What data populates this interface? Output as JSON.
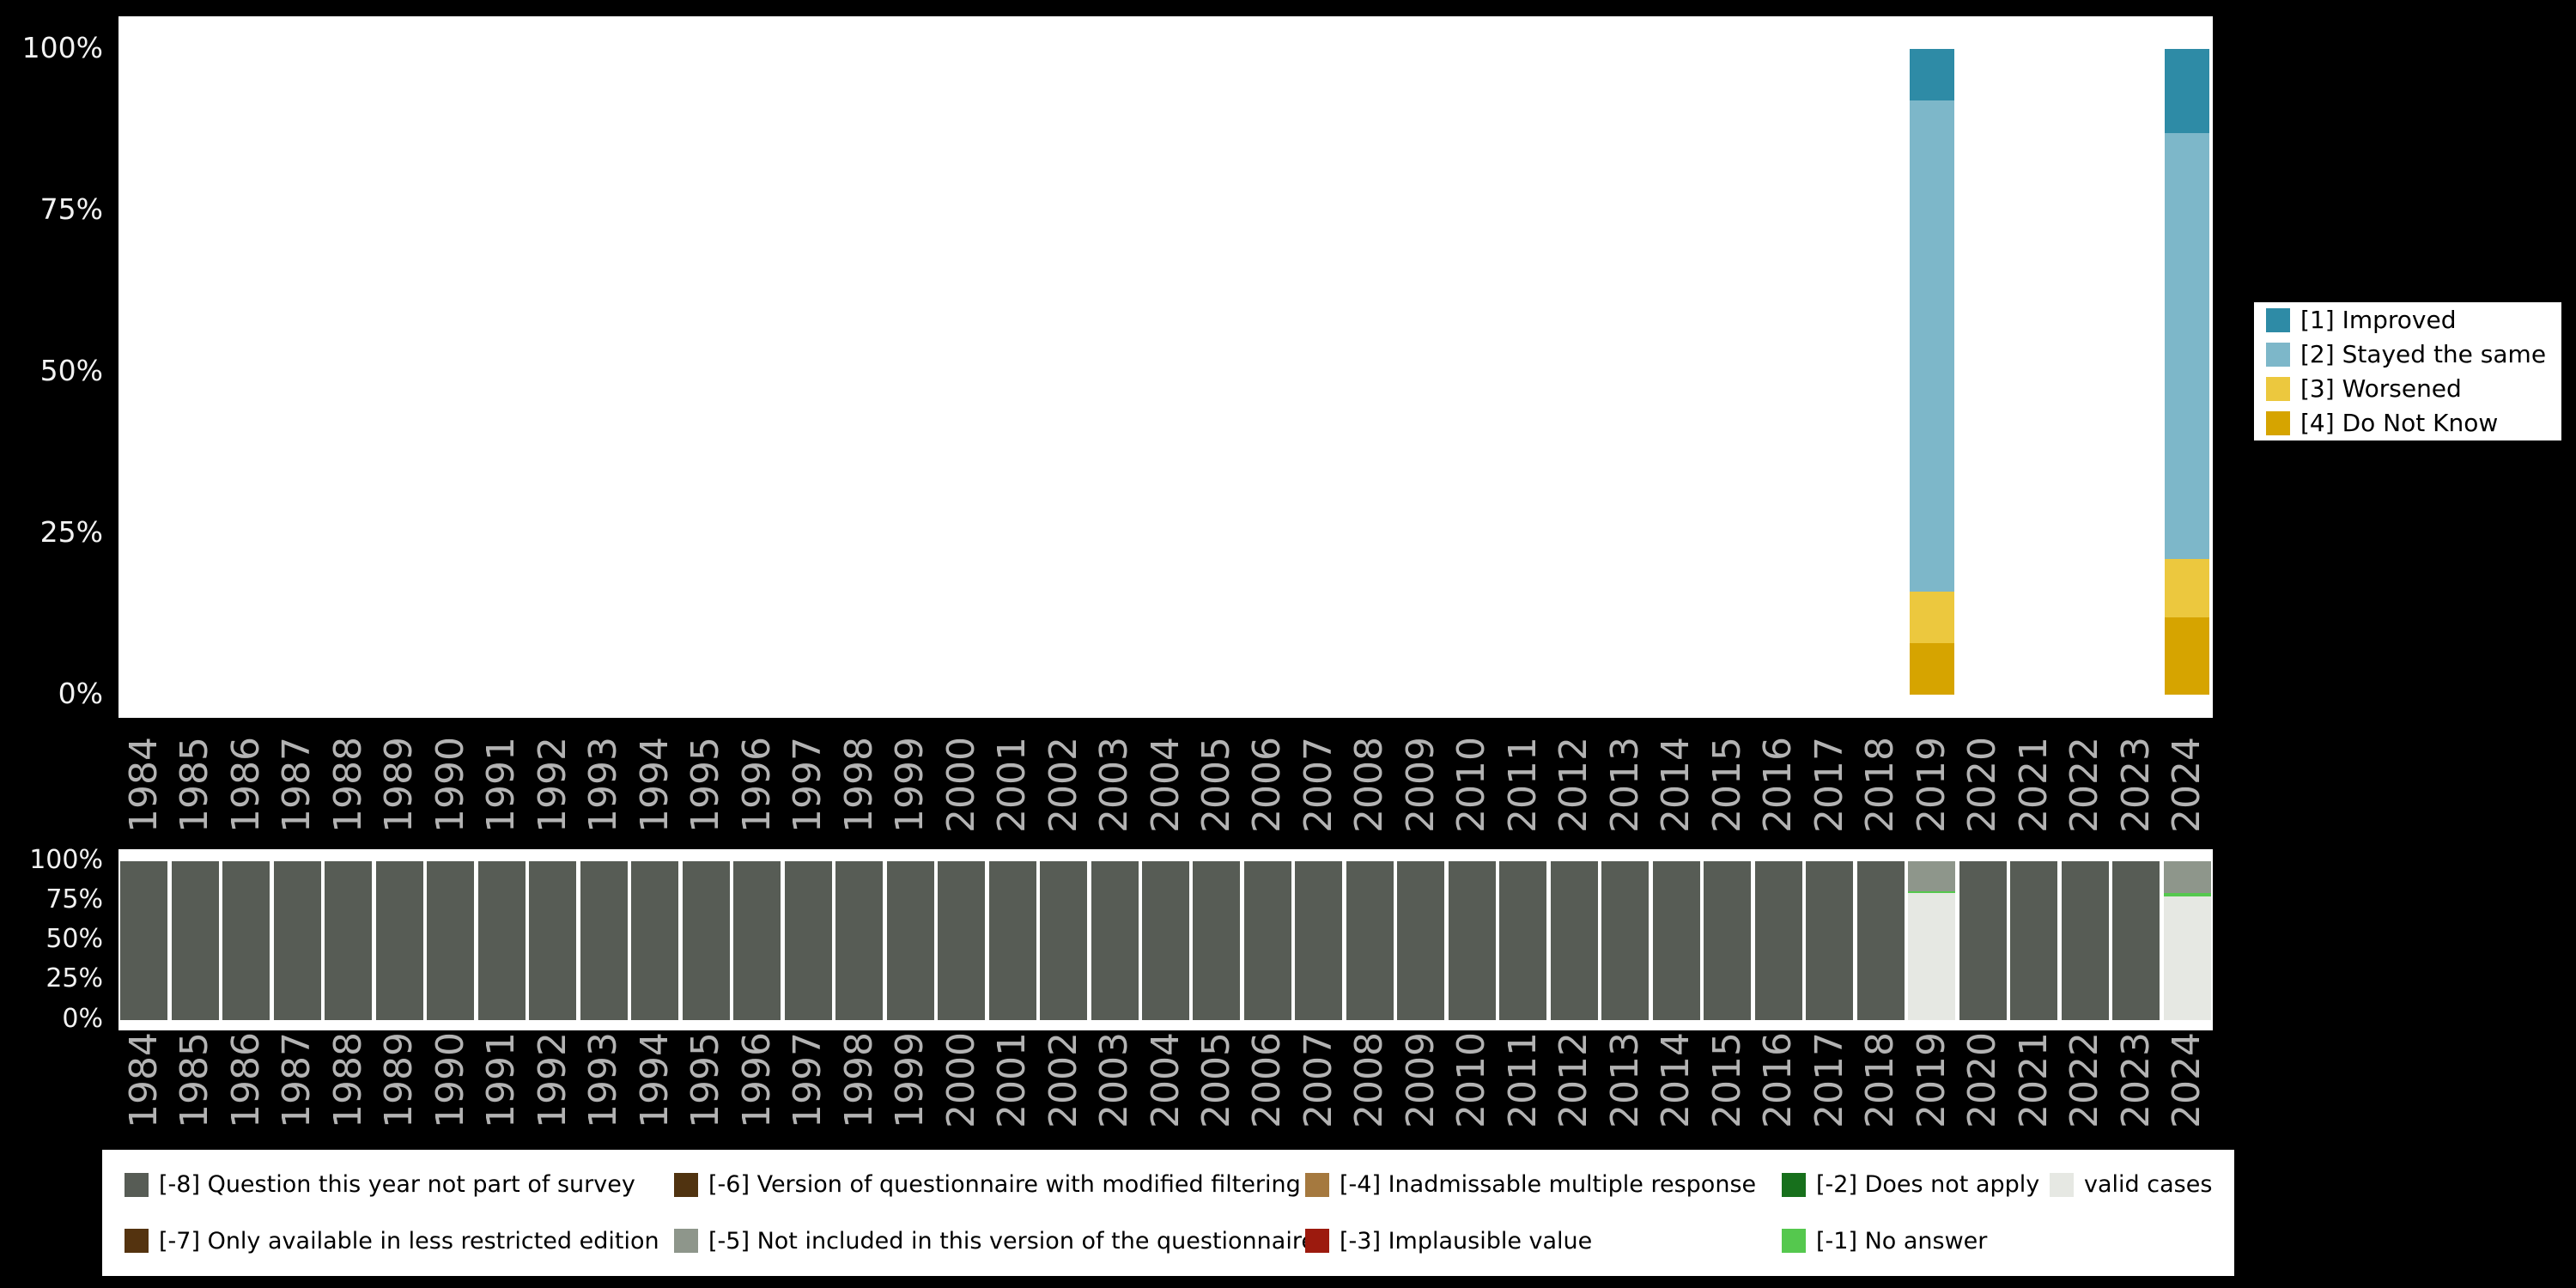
{
  "page": {
    "background": "#000000"
  },
  "chart_data": [
    {
      "id": "responses",
      "type": "bar",
      "stacked": true,
      "title": "",
      "xlabel": "",
      "ylabel": "",
      "ylim": [
        0,
        100
      ],
      "grid": false,
      "legend_position": "right",
      "x": [
        "1984",
        "1985",
        "1986",
        "1987",
        "1988",
        "1989",
        "1990",
        "1991",
        "1992",
        "1993",
        "1994",
        "1995",
        "1996",
        "1997",
        "1998",
        "1999",
        "2000",
        "2001",
        "2002",
        "2003",
        "2004",
        "2005",
        "2006",
        "2007",
        "2008",
        "2009",
        "2010",
        "2011",
        "2012",
        "2013",
        "2014",
        "2015",
        "2016",
        "2017",
        "2018",
        "2019",
        "2020",
        "2021",
        "2022",
        "2023",
        "2024"
      ],
      "yticks": [
        {
          "label": "0%",
          "value": 0
        },
        {
          "label": "25%",
          "value": 25
        },
        {
          "label": "50%",
          "value": 50
        },
        {
          "label": "75%",
          "value": 75
        },
        {
          "label": "100%",
          "value": 100
        }
      ],
      "series": [
        {
          "name": "[1] Improved",
          "color": "#2e8ba6",
          "values": {
            "2019": 8,
            "2024": 13
          }
        },
        {
          "name": "[2] Stayed the same",
          "color": "#7db7c9",
          "values": {
            "2019": 76,
            "2024": 66
          }
        },
        {
          "name": "[3] Worsened",
          "color": "#ecc83e",
          "values": {
            "2019": 8,
            "2024": 9
          }
        },
        {
          "name": "[4] Do Not Know",
          "color": "#d6a400",
          "values": {
            "2019": 8,
            "2024": 12
          }
        }
      ],
      "stack_order_bottom_to_top": [
        "[4] Do Not Know",
        "[3] Worsened",
        "[2] Stayed the same",
        "[1] Improved"
      ]
    },
    {
      "id": "missing-values",
      "type": "bar",
      "stacked": true,
      "title": "",
      "xlabel": "",
      "ylabel": "",
      "ylim": [
        0,
        100
      ],
      "grid": false,
      "legend_position": "bottom",
      "x": [
        "1984",
        "1985",
        "1986",
        "1987",
        "1988",
        "1989",
        "1990",
        "1991",
        "1992",
        "1993",
        "1994",
        "1995",
        "1996",
        "1997",
        "1998",
        "1999",
        "2000",
        "2001",
        "2002",
        "2003",
        "2004",
        "2005",
        "2006",
        "2007",
        "2008",
        "2009",
        "2010",
        "2011",
        "2012",
        "2013",
        "2014",
        "2015",
        "2016",
        "2017",
        "2018",
        "2019",
        "2020",
        "2021",
        "2022",
        "2023",
        "2024"
      ],
      "yticks": [
        {
          "label": "0%",
          "value": 0
        },
        {
          "label": "25%",
          "value": 25
        },
        {
          "label": "50%",
          "value": 50
        },
        {
          "label": "75%",
          "value": 75
        },
        {
          "label": "100%",
          "value": 100
        }
      ],
      "series": [
        {
          "name": "valid cases",
          "color": "#e6e8e3",
          "values": {
            "2019": 80,
            "2024": 78
          }
        },
        {
          "name": "[-1] No answer",
          "color": "#55c84e",
          "values": {
            "2019": 1,
            "2024": 2
          }
        },
        {
          "name": "[-5] Not included in this version of the questionnaire",
          "color": "#8e968b",
          "values": {
            "2019": 19,
            "2024": 20
          }
        },
        {
          "name": "[-8] Question this year not part of survey",
          "color": "#575c55",
          "values": {
            "1984": 100,
            "1985": 100,
            "1986": 100,
            "1987": 100,
            "1988": 100,
            "1989": 100,
            "1990": 100,
            "1991": 100,
            "1992": 100,
            "1993": 100,
            "1994": 100,
            "1995": 100,
            "1996": 100,
            "1997": 100,
            "1998": 100,
            "1999": 100,
            "2000": 100,
            "2001": 100,
            "2002": 100,
            "2003": 100,
            "2004": 100,
            "2005": 100,
            "2006": 100,
            "2007": 100,
            "2008": 100,
            "2009": 100,
            "2010": 100,
            "2011": 100,
            "2012": 100,
            "2013": 100,
            "2014": 100,
            "2015": 100,
            "2016": 100,
            "2017": 100,
            "2018": 100,
            "2020": 100,
            "2021": 100,
            "2022": 100,
            "2023": 100
          }
        }
      ],
      "stack_order_bottom_to_top": [
        "valid cases",
        "[-1] No answer",
        "[-5] Not included in this version of the questionnaire",
        "[-8] Question this year not part of survey"
      ]
    }
  ],
  "legends": {
    "response": {
      "items": [
        {
          "label": "[1] Improved",
          "color": "#2e8ba6"
        },
        {
          "label": "[2] Stayed the same",
          "color": "#7db7c9"
        },
        {
          "label": "[3] Worsened",
          "color": "#ecc83e"
        },
        {
          "label": "[4] Do Not Know",
          "color": "#d6a400"
        }
      ]
    },
    "missing": {
      "items_column_major": [
        {
          "label": "[-8] Question this year not part of survey",
          "color": "#575c55"
        },
        {
          "label": "[-7] Only available in less restricted edition",
          "color": "#54330f"
        },
        {
          "label": "[-6] Version of questionnaire with modified filtering",
          "color": "#503310"
        },
        {
          "label": "[-5] Not included in this version of the questionnaire",
          "color": "#8e968b"
        },
        {
          "label": "[-4] Inadmissable multiple response",
          "color": "#a5793f"
        },
        {
          "label": "[-3] Implausible value",
          "color": "#9c1a0e"
        },
        {
          "label": "[-2] Does not apply",
          "color": "#17701c"
        },
        {
          "label": "[-1] No answer",
          "color": "#55c84e"
        },
        {
          "label": "valid cases",
          "color": "#e6e8e3"
        }
      ]
    }
  }
}
